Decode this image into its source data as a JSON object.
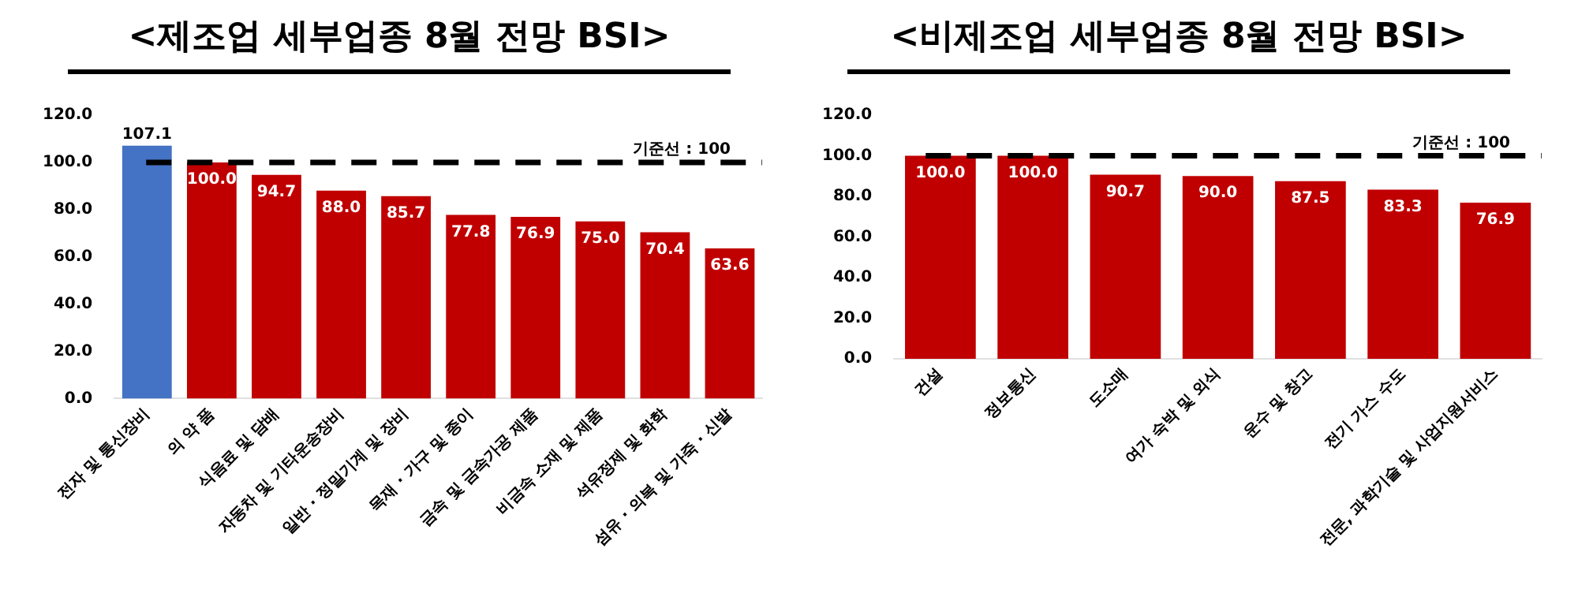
{
  "chart_data": [
    {
      "type": "bar",
      "title": "<제조업 세부업종 8월 전망 BSI>",
      "categories": [
        "전자 및 통신장비",
        "의 약 품",
        "식음료 및 담배",
        "자동차 및 기타운송장비",
        "일반 · 정밀기계 및 장비",
        "목재 · 가구 및 종이",
        "금속 및 금속가공 제품",
        "비금속 소재 및 제품",
        "석유정제 및 화학",
        "섬유 · 의복 및 가죽 · 신발"
      ],
      "values": [
        107.1,
        100.0,
        94.7,
        88.0,
        85.7,
        77.8,
        76.9,
        75.0,
        70.4,
        63.6
      ],
      "value_labels": [
        "107.1",
        "100.0",
        "94.7",
        "88.0",
        "85.7",
        "77.8",
        "76.9",
        "75.0",
        "70.4",
        "63.6"
      ],
      "colors": [
        "#4472c4",
        "#c00000",
        "#c00000",
        "#c00000",
        "#c00000",
        "#c00000",
        "#c00000",
        "#c00000",
        "#c00000",
        "#c00000"
      ],
      "ylim": [
        0,
        120
      ],
      "yticks": [
        {
          "value": 0,
          "label": "0.0"
        },
        {
          "value": 20,
          "label": "20.0"
        },
        {
          "value": 40,
          "label": "40.0"
        },
        {
          "value": 60,
          "label": "60.0"
        },
        {
          "value": 80,
          "label": "80.0"
        },
        {
          "value": 100,
          "label": "100.0"
        },
        {
          "value": 120,
          "label": "120.0"
        }
      ],
      "ref_lines": [
        {
          "axis": "y",
          "value": 100,
          "label": "기준선 : 100",
          "color": "#000000",
          "line_style": "dashed"
        }
      ],
      "grid": false,
      "legend": false
    },
    {
      "type": "bar",
      "title": "<비제조업 세부업종 8월 전망 BSI>",
      "categories": [
        "건설",
        "정보통신",
        "도소매",
        "여가 숙박 및 외식",
        "운수 및 창고",
        "전기 가스 수도",
        "전문, 과학기술 및 사업지원서비스"
      ],
      "values": [
        100.0,
        100.0,
        90.7,
        90.0,
        87.5,
        83.3,
        76.9
      ],
      "value_labels": [
        "100.0",
        "100.0",
        "90.7",
        "90.0",
        "87.5",
        "83.3",
        "76.9"
      ],
      "colors": [
        "#c00000",
        "#c00000",
        "#c00000",
        "#c00000",
        "#c00000",
        "#c00000",
        "#c00000"
      ],
      "ylim": [
        0,
        120
      ],
      "yticks": [
        {
          "value": 0,
          "label": "0.0"
        },
        {
          "value": 20,
          "label": "20.0"
        },
        {
          "value": 40,
          "label": "40.0"
        },
        {
          "value": 60,
          "label": "60.0"
        },
        {
          "value": 80,
          "label": "80.0"
        },
        {
          "value": 100,
          "label": "100.0"
        },
        {
          "value": 120,
          "label": "120.0"
        }
      ],
      "ref_lines": [
        {
          "axis": "y",
          "value": 100,
          "label": "기준선 : 100",
          "color": "#000000",
          "line_style": "dashed"
        }
      ],
      "grid": false,
      "legend": false
    }
  ]
}
